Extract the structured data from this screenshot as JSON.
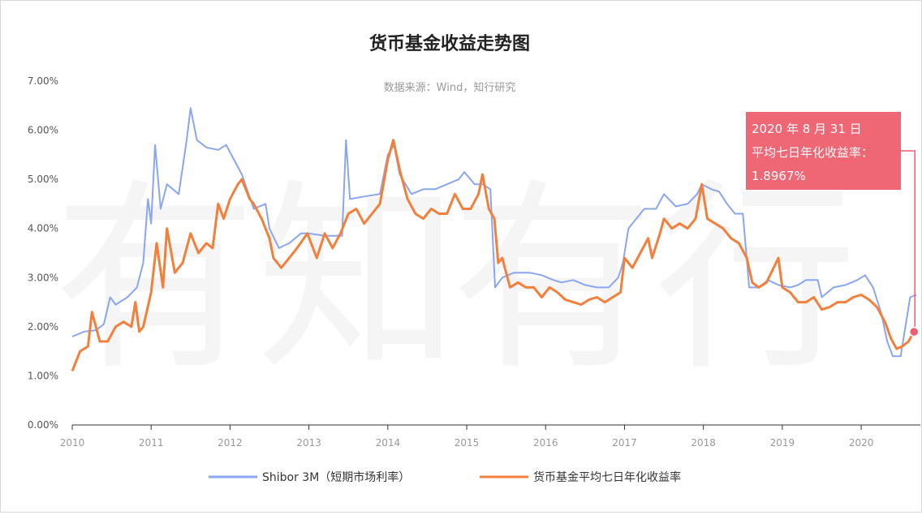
{
  "chart_data": {
    "type": "line",
    "title": "货币基金收益走势图",
    "subtitle": "数据来源：Wind，知行研究",
    "watermark": "有知有行",
    "xlim": [
      2010.0,
      2020.75
    ],
    "ylim": [
      0,
      7
    ],
    "y_ticks": [
      "0.00%",
      "1.00%",
      "2.00%",
      "3.00%",
      "4.00%",
      "5.00%",
      "6.00%",
      "7.00%"
    ],
    "x_ticks": [
      "2010",
      "2011",
      "2012",
      "2013",
      "2014",
      "2015",
      "2016",
      "2017",
      "2018",
      "2019",
      "2020"
    ],
    "grid": false,
    "legend_position": "bottom",
    "series": [
      {
        "name": "Shibor 3M（短期市场利率）",
        "color": "#8aa6f0",
        "points": [
          [
            2010.0,
            1.8
          ],
          [
            2010.15,
            1.9
          ],
          [
            2010.3,
            1.93
          ],
          [
            2010.4,
            2.05
          ],
          [
            2010.48,
            2.6
          ],
          [
            2010.55,
            2.45
          ],
          [
            2010.7,
            2.6
          ],
          [
            2010.82,
            2.8
          ],
          [
            2010.9,
            3.3
          ],
          [
            2010.96,
            4.6
          ],
          [
            2011.0,
            4.1
          ],
          [
            2011.05,
            5.7
          ],
          [
            2011.12,
            4.4
          ],
          [
            2011.2,
            4.9
          ],
          [
            2011.35,
            4.7
          ],
          [
            2011.45,
            5.8
          ],
          [
            2011.5,
            6.45
          ],
          [
            2011.58,
            5.8
          ],
          [
            2011.7,
            5.65
          ],
          [
            2011.85,
            5.6
          ],
          [
            2011.95,
            5.7
          ],
          [
            2012.05,
            5.4
          ],
          [
            2012.15,
            5.1
          ],
          [
            2012.3,
            4.4
          ],
          [
            2012.45,
            4.5
          ],
          [
            2012.5,
            4.0
          ],
          [
            2012.62,
            3.6
          ],
          [
            2012.75,
            3.7
          ],
          [
            2012.9,
            3.9
          ],
          [
            2013.0,
            3.9
          ],
          [
            2013.2,
            3.85
          ],
          [
            2013.42,
            3.85
          ],
          [
            2013.47,
            5.8
          ],
          [
            2013.52,
            4.6
          ],
          [
            2013.7,
            4.65
          ],
          [
            2013.9,
            4.7
          ],
          [
            2014.0,
            5.5
          ],
          [
            2014.08,
            5.7
          ],
          [
            2014.15,
            5.1
          ],
          [
            2014.3,
            4.7
          ],
          [
            2014.45,
            4.8
          ],
          [
            2014.6,
            4.8
          ],
          [
            2014.75,
            4.9
          ],
          [
            2014.9,
            5.0
          ],
          [
            2014.97,
            5.15
          ],
          [
            2015.1,
            4.9
          ],
          [
            2015.2,
            4.9
          ],
          [
            2015.3,
            4.8
          ],
          [
            2015.36,
            2.8
          ],
          [
            2015.45,
            3.0
          ],
          [
            2015.6,
            3.1
          ],
          [
            2015.8,
            3.1
          ],
          [
            2015.95,
            3.05
          ],
          [
            2016.1,
            2.95
          ],
          [
            2016.2,
            2.9
          ],
          [
            2016.35,
            2.95
          ],
          [
            2016.5,
            2.85
          ],
          [
            2016.65,
            2.8
          ],
          [
            2016.8,
            2.8
          ],
          [
            2016.92,
            3.0
          ],
          [
            2016.98,
            3.3
          ],
          [
            2017.05,
            4.0
          ],
          [
            2017.15,
            4.2
          ],
          [
            2017.25,
            4.4
          ],
          [
            2017.4,
            4.4
          ],
          [
            2017.5,
            4.7
          ],
          [
            2017.65,
            4.45
          ],
          [
            2017.8,
            4.5
          ],
          [
            2017.92,
            4.7
          ],
          [
            2017.98,
            4.9
          ],
          [
            2018.1,
            4.8
          ],
          [
            2018.2,
            4.75
          ],
          [
            2018.3,
            4.5
          ],
          [
            2018.4,
            4.3
          ],
          [
            2018.5,
            4.3
          ],
          [
            2018.58,
            2.8
          ],
          [
            2018.7,
            2.8
          ],
          [
            2018.82,
            2.95
          ],
          [
            2018.95,
            2.85
          ],
          [
            2019.1,
            2.8
          ],
          [
            2019.2,
            2.85
          ],
          [
            2019.3,
            2.95
          ],
          [
            2019.45,
            2.95
          ],
          [
            2019.5,
            2.6
          ],
          [
            2019.65,
            2.8
          ],
          [
            2019.8,
            2.85
          ],
          [
            2019.95,
            2.95
          ],
          [
            2020.05,
            3.05
          ],
          [
            2020.15,
            2.8
          ],
          [
            2020.25,
            2.3
          ],
          [
            2020.33,
            1.7
          ],
          [
            2020.4,
            1.4
          ],
          [
            2020.5,
            1.4
          ],
          [
            2020.58,
            2.2
          ],
          [
            2020.62,
            2.6
          ],
          [
            2020.7,
            2.65
          ]
        ]
      },
      {
        "name": "货币基金平均七日年化收益率",
        "color": "#f47f3a",
        "points": [
          [
            2010.0,
            1.1
          ],
          [
            2010.1,
            1.5
          ],
          [
            2010.2,
            1.6
          ],
          [
            2010.25,
            2.3
          ],
          [
            2010.35,
            1.7
          ],
          [
            2010.45,
            1.7
          ],
          [
            2010.55,
            2.0
          ],
          [
            2010.65,
            2.1
          ],
          [
            2010.75,
            2.0
          ],
          [
            2010.8,
            2.5
          ],
          [
            2010.85,
            1.9
          ],
          [
            2010.9,
            2.0
          ],
          [
            2011.0,
            2.7
          ],
          [
            2011.07,
            3.7
          ],
          [
            2011.15,
            2.8
          ],
          [
            2011.2,
            4.0
          ],
          [
            2011.3,
            3.1
          ],
          [
            2011.4,
            3.3
          ],
          [
            2011.5,
            3.9
          ],
          [
            2011.6,
            3.5
          ],
          [
            2011.7,
            3.7
          ],
          [
            2011.78,
            3.6
          ],
          [
            2011.85,
            4.5
          ],
          [
            2011.92,
            4.2
          ],
          [
            2012.0,
            4.6
          ],
          [
            2012.1,
            4.9
          ],
          [
            2012.15,
            5.0
          ],
          [
            2012.25,
            4.6
          ],
          [
            2012.3,
            4.5
          ],
          [
            2012.4,
            4.2
          ],
          [
            2012.5,
            3.8
          ],
          [
            2012.55,
            3.4
          ],
          [
            2012.65,
            3.2
          ],
          [
            2012.75,
            3.4
          ],
          [
            2012.85,
            3.6
          ],
          [
            2012.98,
            3.9
          ],
          [
            2013.1,
            3.4
          ],
          [
            2013.2,
            3.9
          ],
          [
            2013.3,
            3.6
          ],
          [
            2013.4,
            3.9
          ],
          [
            2013.5,
            4.3
          ],
          [
            2013.6,
            4.4
          ],
          [
            2013.7,
            4.1
          ],
          [
            2013.8,
            4.3
          ],
          [
            2013.9,
            4.5
          ],
          [
            2014.0,
            5.4
          ],
          [
            2014.07,
            5.8
          ],
          [
            2014.15,
            5.2
          ],
          [
            2014.25,
            4.6
          ],
          [
            2014.35,
            4.3
          ],
          [
            2014.45,
            4.2
          ],
          [
            2014.55,
            4.4
          ],
          [
            2014.65,
            4.3
          ],
          [
            2014.75,
            4.3
          ],
          [
            2014.85,
            4.7
          ],
          [
            2014.95,
            4.4
          ],
          [
            2015.05,
            4.4
          ],
          [
            2015.15,
            4.7
          ],
          [
            2015.2,
            5.1
          ],
          [
            2015.28,
            4.4
          ],
          [
            2015.35,
            4.2
          ],
          [
            2015.4,
            3.3
          ],
          [
            2015.45,
            3.4
          ],
          [
            2015.55,
            2.8
          ],
          [
            2015.65,
            2.9
          ],
          [
            2015.75,
            2.8
          ],
          [
            2015.85,
            2.8
          ],
          [
            2015.95,
            2.6
          ],
          [
            2016.05,
            2.8
          ],
          [
            2016.15,
            2.7
          ],
          [
            2016.25,
            2.55
          ],
          [
            2016.35,
            2.5
          ],
          [
            2016.45,
            2.45
          ],
          [
            2016.55,
            2.55
          ],
          [
            2016.65,
            2.6
          ],
          [
            2016.75,
            2.5
          ],
          [
            2016.85,
            2.6
          ],
          [
            2016.95,
            2.7
          ],
          [
            2017.0,
            3.4
          ],
          [
            2017.1,
            3.2
          ],
          [
            2017.2,
            3.5
          ],
          [
            2017.3,
            3.8
          ],
          [
            2017.35,
            3.4
          ],
          [
            2017.45,
            3.9
          ],
          [
            2017.5,
            4.2
          ],
          [
            2017.6,
            4.0
          ],
          [
            2017.7,
            4.1
          ],
          [
            2017.8,
            4.0
          ],
          [
            2017.9,
            4.2
          ],
          [
            2017.98,
            4.9
          ],
          [
            2018.05,
            4.2
          ],
          [
            2018.15,
            4.1
          ],
          [
            2018.25,
            4.0
          ],
          [
            2018.35,
            3.8
          ],
          [
            2018.45,
            3.7
          ],
          [
            2018.55,
            3.4
          ],
          [
            2018.62,
            2.9
          ],
          [
            2018.7,
            2.8
          ],
          [
            2018.8,
            2.9
          ],
          [
            2018.95,
            3.4
          ],
          [
            2019.0,
            2.8
          ],
          [
            2019.1,
            2.7
          ],
          [
            2019.2,
            2.5
          ],
          [
            2019.3,
            2.5
          ],
          [
            2019.4,
            2.6
          ],
          [
            2019.5,
            2.35
          ],
          [
            2019.6,
            2.4
          ],
          [
            2019.7,
            2.5
          ],
          [
            2019.8,
            2.5
          ],
          [
            2019.9,
            2.6
          ],
          [
            2020.0,
            2.65
          ],
          [
            2020.1,
            2.55
          ],
          [
            2020.2,
            2.4
          ],
          [
            2020.3,
            2.1
          ],
          [
            2020.38,
            1.75
          ],
          [
            2020.45,
            1.55
          ],
          [
            2020.52,
            1.6
          ],
          [
            2020.6,
            1.7
          ],
          [
            2020.67,
            1.9
          ]
        ]
      }
    ],
    "annotation": {
      "line1": "2020 年 8 月 31 日",
      "line2": "平均七日年化收益率：",
      "line3": "1.8967%",
      "x": 2020.67,
      "y": 1.8967,
      "color": "#ee5f6e"
    }
  }
}
